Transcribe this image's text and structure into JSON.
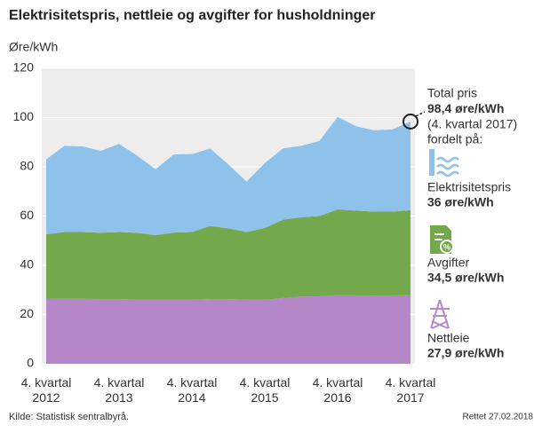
{
  "chart_data": {
    "type": "stacked-area",
    "title": "Elektrisitetspris, nettleie og avgifter for husholdninger",
    "y_label": "Øre/kWh",
    "source": "Kilde: Statistisk sentralbyrå.",
    "note": "Rettet 27.02.2018",
    "annotation": [
      "Total pris",
      "98,4 øre/kWh",
      "(4. kvartal 2017)",
      "fordelt på:"
    ],
    "categories": [
      "4. kvartal 2012",
      null,
      null,
      null,
      "4. kvartal 2013",
      null,
      null,
      null,
      "4. kvartal 2014",
      null,
      null,
      null,
      "4. kvartal 2015",
      null,
      null,
      null,
      "4. kvartal 2016",
      null,
      null,
      null,
      "4. kvartal 2017"
    ],
    "series": [
      {
        "name": "Elektrisitetspris",
        "color": "#8fc2ea",
        "values": [
          30.4,
          35.0,
          34.8,
          33.3,
          35.8,
          31.3,
          26.8,
          31.7,
          31.7,
          31.4,
          26.0,
          20.5,
          26.3,
          29.0,
          29.0,
          30.5,
          37.6,
          34.3,
          33.0,
          33.4,
          36.0
        ],
        "value_labels": [
          null,
          null,
          null,
          null,
          null,
          null,
          null,
          null,
          null,
          null,
          null,
          null,
          null,
          null,
          null,
          null,
          null,
          null,
          null,
          null,
          "36 øre/kWh"
        ]
      },
      {
        "name": "Avgifter",
        "color": "#74a84c",
        "values": [
          26.1,
          27.1,
          27.1,
          26.9,
          27.2,
          27.2,
          26.2,
          27.3,
          27.5,
          29.7,
          28.7,
          27.5,
          29.2,
          31.8,
          32.2,
          32.6,
          34.8,
          34.4,
          34.1,
          34.0,
          34.5
        ],
        "value_labels": [
          null,
          null,
          null,
          null,
          null,
          null,
          null,
          null,
          null,
          null,
          null,
          null,
          null,
          null,
          null,
          null,
          null,
          null,
          null,
          null,
          "34,5 øre/kWh"
        ]
      },
      {
        "name": "Nettleie",
        "color": "#b587c9",
        "values": [
          26.5,
          26.4,
          26.4,
          26.3,
          26.3,
          26.0,
          26.0,
          26.0,
          26.0,
          26.3,
          26.3,
          26.0,
          26.0,
          26.7,
          27.3,
          27.4,
          27.9,
          27.8,
          27.7,
          27.8,
          27.9
        ],
        "value_labels": [
          null,
          null,
          null,
          null,
          null,
          null,
          null,
          null,
          null,
          null,
          null,
          null,
          null,
          null,
          null,
          null,
          null,
          null,
          null,
          null,
          "27,9 øre/kWh"
        ]
      }
    ],
    "ylim": [
      0,
      120
    ],
    "yticks": [
      0,
      20,
      40,
      60,
      80,
      100,
      120
    ],
    "grid": true
  }
}
